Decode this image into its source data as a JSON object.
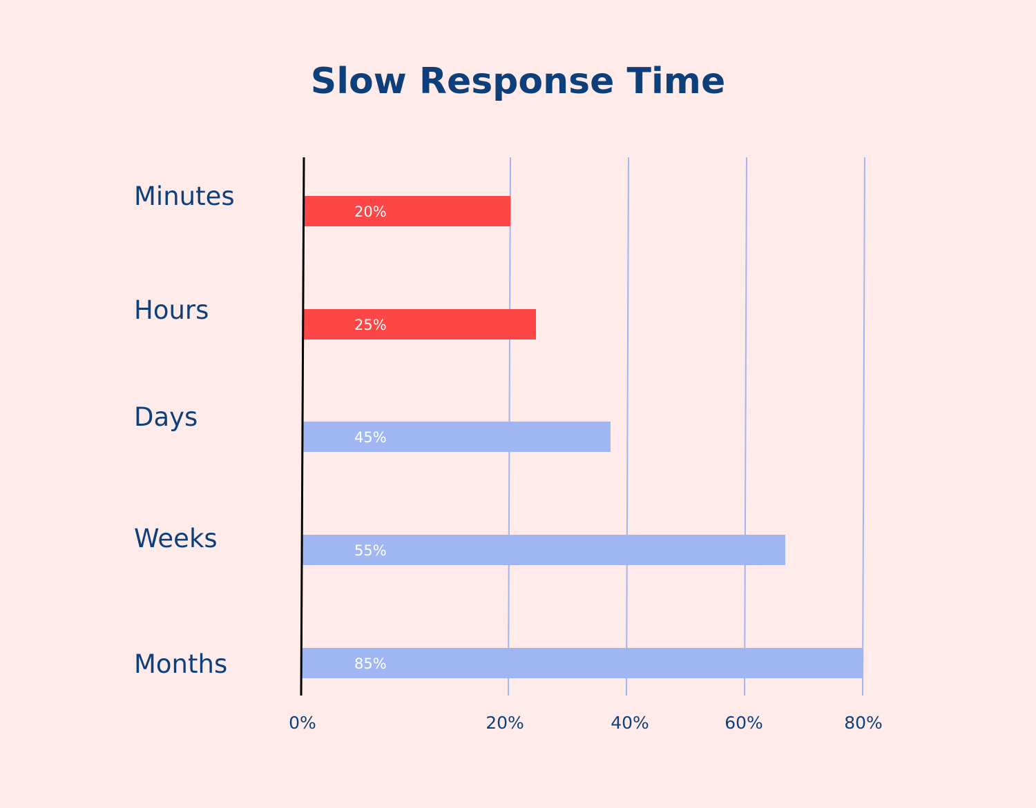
{
  "colors": {
    "background": "#FFECEA",
    "title": "#0D3F7A",
    "label": "#0D3F7A",
    "highlight_bar": "#FF4646",
    "default_bar": "#A0B6F2",
    "gridline": "#A0B6F2",
    "axis": "#000000",
    "bar_label": "#FFFFFF"
  },
  "chart_data": {
    "type": "bar",
    "orientation": "horizontal",
    "title": "Slow Response Time",
    "xlabel": "",
    "ylabel": "",
    "categories": [
      "Minutes",
      "Hours",
      "Days",
      "Weeks",
      "Months"
    ],
    "values": [
      20,
      25,
      45,
      55,
      85
    ],
    "bar_labels": [
      "20%",
      "25%",
      "45%",
      "55%",
      "85%"
    ],
    "bar_colors": [
      "#FF4646",
      "#FF4646",
      "#A0B6F2",
      "#A0B6F2",
      "#A0B6F2"
    ],
    "x_ticks": [
      0,
      20,
      40,
      60,
      80
    ],
    "x_tick_labels": [
      "0%",
      "20%",
      "40%",
      "60%",
      "80%"
    ],
    "grid": "vertical",
    "legend": "none"
  }
}
